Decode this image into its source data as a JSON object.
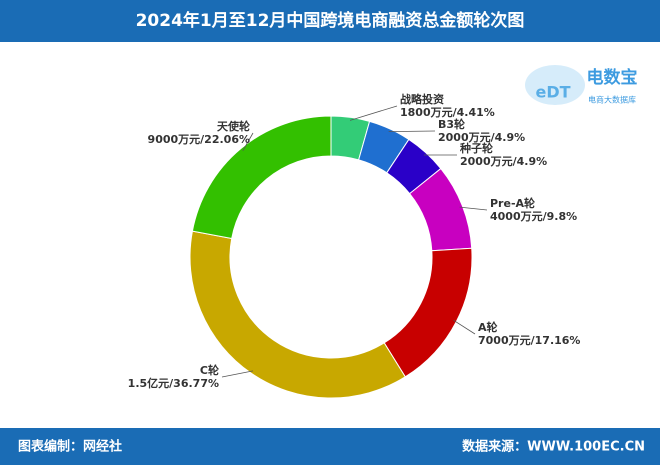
{
  "header": {
    "title": "2024年1月至12月中国跨境电商融资总金额轮次图"
  },
  "logo": {
    "mark": "eDT",
    "name": "电数宝",
    "subtitle": "电商大数据库"
  },
  "chart_data": {
    "type": "donut",
    "categories": [
      "战略投资",
      "B3轮",
      "种子轮",
      "Pre-A轮",
      "A轮",
      "C轮",
      "天使轮"
    ],
    "values": [
      4.41,
      4.9,
      4.9,
      9.8,
      17.16,
      36.77,
      22.06
    ],
    "value_labels": [
      "1800万元/4.41%",
      "2000万元/4.9%",
      "2000万元/4.9%",
      "4000万元/9.8%",
      "7000万元/17.16%",
      "1.5亿元/36.77%",
      "9000万元/22.06%"
    ],
    "colors": [
      "#33cc77",
      "#1f6fd0",
      "#2a00c8",
      "#c800c0",
      "#c80000",
      "#c8a800",
      "#33c000"
    ]
  },
  "footer": {
    "editor": "图表编制：网经社",
    "source": "数据来源：WWW.100EC.CN"
  }
}
